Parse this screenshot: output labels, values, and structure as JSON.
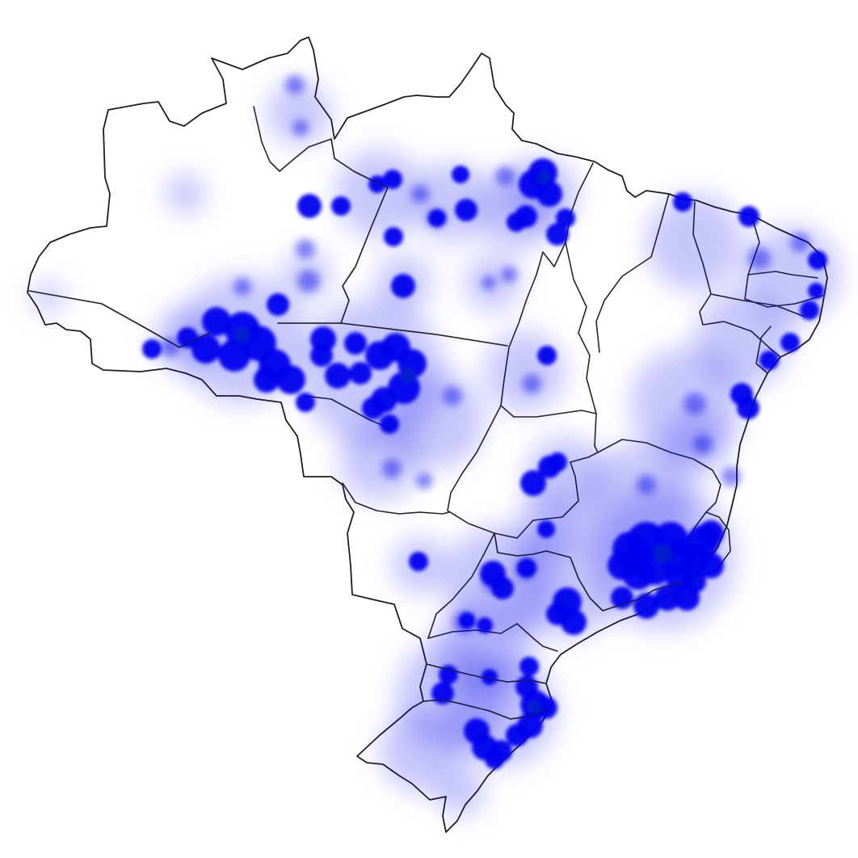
{
  "map": {
    "type": "density-heatmap",
    "region": "",
    "colors": {
      "background": "#ffffff",
      "land": "#ffffff",
      "border": "#262626",
      "heat_strong": "#0000ee",
      "heat_core": "#0033aa",
      "heat_faint": "#dcdcff"
    }
  }
}
